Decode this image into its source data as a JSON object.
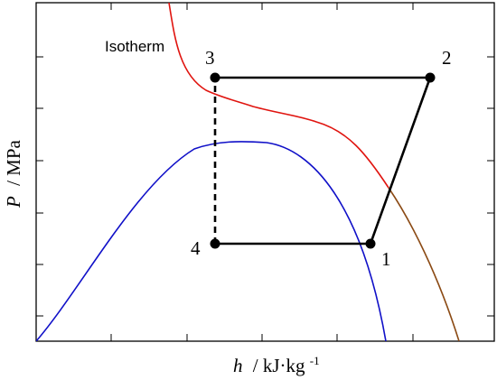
{
  "axes": {
    "x_label_symbol": "h",
    "x_label_unit": "/ kJ·kg",
    "x_label_exponent": "-1",
    "y_label_symbol": "P",
    "y_label_unit": "/ MPa"
  },
  "annotations": {
    "isotherm": "Isotherm"
  },
  "state_points": [
    {
      "label": "1"
    },
    {
      "label": "2"
    },
    {
      "label": "3"
    },
    {
      "label": "4"
    }
  ],
  "colors": {
    "isotherm": "#e0140f",
    "saturation_dome": "#1010c8",
    "isotherm_low_pressure_segment": "#8b4a14",
    "cycle": "#000000"
  },
  "styles": {
    "line_3_4": "dashed",
    "other_cycle_lines": "solid"
  }
}
